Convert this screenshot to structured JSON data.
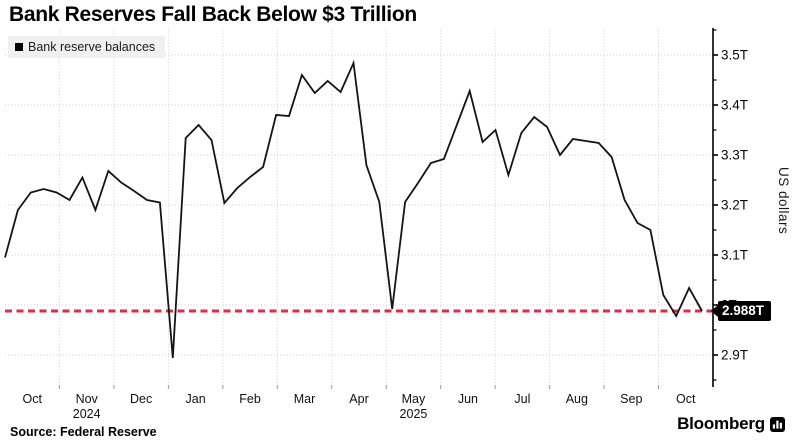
{
  "title": "Bank Reserves Fall Back Below $3 Trillion",
  "legend": {
    "swatch_icon": "black-square-icon",
    "swatch_color": "#000000"
  },
  "source": {
    "prefix": "Source:",
    "text": "Federal Reserve"
  },
  "branding": {
    "wordmark": "Bloomberg",
    "logo_icon": "bloomberg-terminal-icon"
  },
  "chart_data": {
    "type": "line",
    "title": "Bank Reserves Fall Back Below $3 Trillion",
    "unit": "USD trillions",
    "xlabel": "",
    "ylabel": "US dollars",
    "ylim": [
      2.84,
      3.55
    ],
    "grid": true,
    "legend_position": "top-left",
    "y_axis": {
      "title": "US dollars",
      "ticks": [
        {
          "value": 3.5,
          "label": "3.5T"
        },
        {
          "value": 3.4,
          "label": "3.4T"
        },
        {
          "value": 3.3,
          "label": "3.3T"
        },
        {
          "value": 3.2,
          "label": "3.2T"
        },
        {
          "value": 3.1,
          "label": "3.1T"
        },
        {
          "value": 3.0,
          "label": "3T"
        },
        {
          "value": 2.9,
          "label": "2.9T"
        }
      ],
      "minor_tick_values": [
        2.85,
        2.95,
        3.05,
        3.15,
        3.25,
        3.35,
        3.45,
        3.55
      ]
    },
    "x_axis": {
      "month_labels": [
        "Oct",
        "Nov",
        "Dec",
        "Jan",
        "Feb",
        "Mar",
        "Apr",
        "May",
        "Jun",
        "Jul",
        "Aug",
        "Sep",
        "Oct"
      ],
      "year_labels": [
        {
          "text": "2024",
          "month_index": 1
        },
        {
          "text": "2025",
          "month_index": 7
        }
      ]
    },
    "reference_line": {
      "value": 2.988,
      "label": "2.988T",
      "style": "dashed",
      "color": "#e02a4a"
    },
    "x": [
      "2024-10-02",
      "2024-10-09",
      "2024-10-16",
      "2024-10-23",
      "2024-10-30",
      "2024-11-06",
      "2024-11-13",
      "2024-11-20",
      "2024-11-27",
      "2024-12-04",
      "2024-12-11",
      "2024-12-18",
      "2024-12-25",
      "2025-01-01",
      "2025-01-08",
      "2025-01-15",
      "2025-01-22",
      "2025-01-29",
      "2025-02-05",
      "2025-02-12",
      "2025-02-19",
      "2025-02-26",
      "2025-03-05",
      "2025-03-12",
      "2025-03-19",
      "2025-03-26",
      "2025-04-02",
      "2025-04-09",
      "2025-04-16",
      "2025-04-23",
      "2025-04-30",
      "2025-05-07",
      "2025-05-14",
      "2025-05-21",
      "2025-05-28",
      "2025-06-04",
      "2025-06-11",
      "2025-06-18",
      "2025-06-25",
      "2025-07-02",
      "2025-07-09",
      "2025-07-16",
      "2025-07-23",
      "2025-07-30",
      "2025-08-06",
      "2025-08-13",
      "2025-08-20",
      "2025-08-27",
      "2025-09-03",
      "2025-09-10",
      "2025-09-17",
      "2025-09-24",
      "2025-10-01",
      "2025-10-08",
      "2025-10-15"
    ],
    "series": [
      {
        "name": "Bank reserve balances",
        "color": "#141414",
        "values": [
          3.095,
          3.19,
          3.225,
          3.232,
          3.225,
          3.21,
          3.255,
          3.19,
          3.268,
          3.245,
          3.228,
          3.21,
          3.205,
          2.894,
          3.334,
          3.36,
          3.33,
          3.204,
          3.234,
          3.256,
          3.276,
          3.38,
          3.378,
          3.46,
          3.424,
          3.448,
          3.426,
          3.484,
          3.28,
          3.206,
          2.992,
          3.206,
          3.244,
          3.284,
          3.292,
          3.36,
          3.428,
          3.326,
          3.35,
          3.26,
          3.344,
          3.376,
          3.356,
          3.3,
          3.332,
          3.328,
          3.324,
          3.296,
          3.21,
          3.164,
          3.15,
          3.02,
          2.978,
          3.034,
          2.988
        ]
      }
    ]
  }
}
